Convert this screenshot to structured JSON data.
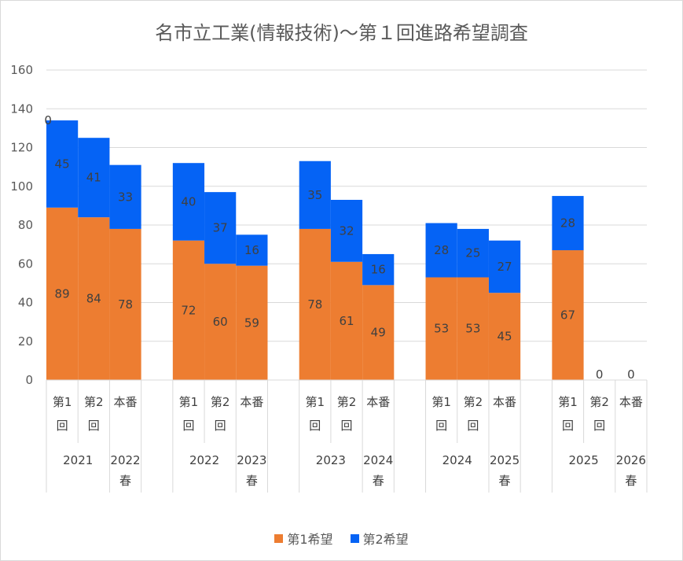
{
  "chart_data": {
    "type": "bar",
    "stacked": true,
    "title": "名市立工業(情報技術)～第１回進路希望調査",
    "ylim": [
      0,
      160
    ],
    "yticks": [
      0,
      20,
      40,
      60,
      80,
      100,
      120,
      140,
      160
    ],
    "grid": true,
    "legend_position": "bottom",
    "groups": [
      {
        "label": "2021",
        "categories": [
          {
            "line1": "第1",
            "line2": "回",
            "year_label": ""
          },
          {
            "line1": "第2",
            "line2": "回",
            "year_label": ""
          },
          {
            "line1": "本番",
            "line2": "",
            "year_label": "2022春"
          }
        ]
      },
      {
        "label": "2022",
        "categories": [
          {
            "line1": "第1",
            "line2": "回",
            "year_label": ""
          },
          {
            "line1": "第2",
            "line2": "回",
            "year_label": ""
          },
          {
            "line1": "本番",
            "line2": "",
            "year_label": "2023春"
          }
        ]
      },
      {
        "label": "2023",
        "categories": [
          {
            "line1": "第1",
            "line2": "回",
            "year_label": ""
          },
          {
            "line1": "第2",
            "line2": "回",
            "year_label": ""
          },
          {
            "line1": "本番",
            "line2": "",
            "year_label": "2024春"
          }
        ]
      },
      {
        "label": "2024",
        "categories": [
          {
            "line1": "第1",
            "line2": "回",
            "year_label": ""
          },
          {
            "line1": "第2",
            "line2": "回",
            "year_label": ""
          },
          {
            "line1": "本番",
            "line2": "",
            "year_label": "2025春"
          }
        ]
      },
      {
        "label": "2025",
        "categories": [
          {
            "line1": "第1",
            "line2": "回",
            "year_label": ""
          },
          {
            "line1": "第2",
            "line2": "回",
            "year_label": ""
          },
          {
            "line1": "本番",
            "line2": "",
            "year_label": "2026春"
          }
        ]
      }
    ],
    "series": [
      {
        "name": "第1希望",
        "color": "#ED7D31",
        "values": [
          89,
          84,
          78,
          72,
          60,
          59,
          78,
          61,
          49,
          53,
          53,
          45,
          67,
          null,
          null
        ],
        "labels": [
          "89",
          "84",
          "78",
          "72",
          "60",
          "59",
          "78",
          "61",
          "49",
          "53",
          "53",
          "45",
          "67",
          "",
          ""
        ]
      },
      {
        "name": "第2希望",
        "color": "#0563F5",
        "values": [
          45,
          41,
          33,
          40,
          37,
          16,
          35,
          32,
          16,
          28,
          25,
          27,
          28,
          0,
          0
        ],
        "labels": [
          "45",
          "41",
          "33",
          "40",
          "37",
          "16",
          "35",
          "32",
          "16",
          "28",
          "25",
          "27",
          "28",
          "0",
          "0"
        ]
      }
    ],
    "extra_labels": [
      {
        "index": 0,
        "text": "0"
      }
    ]
  }
}
